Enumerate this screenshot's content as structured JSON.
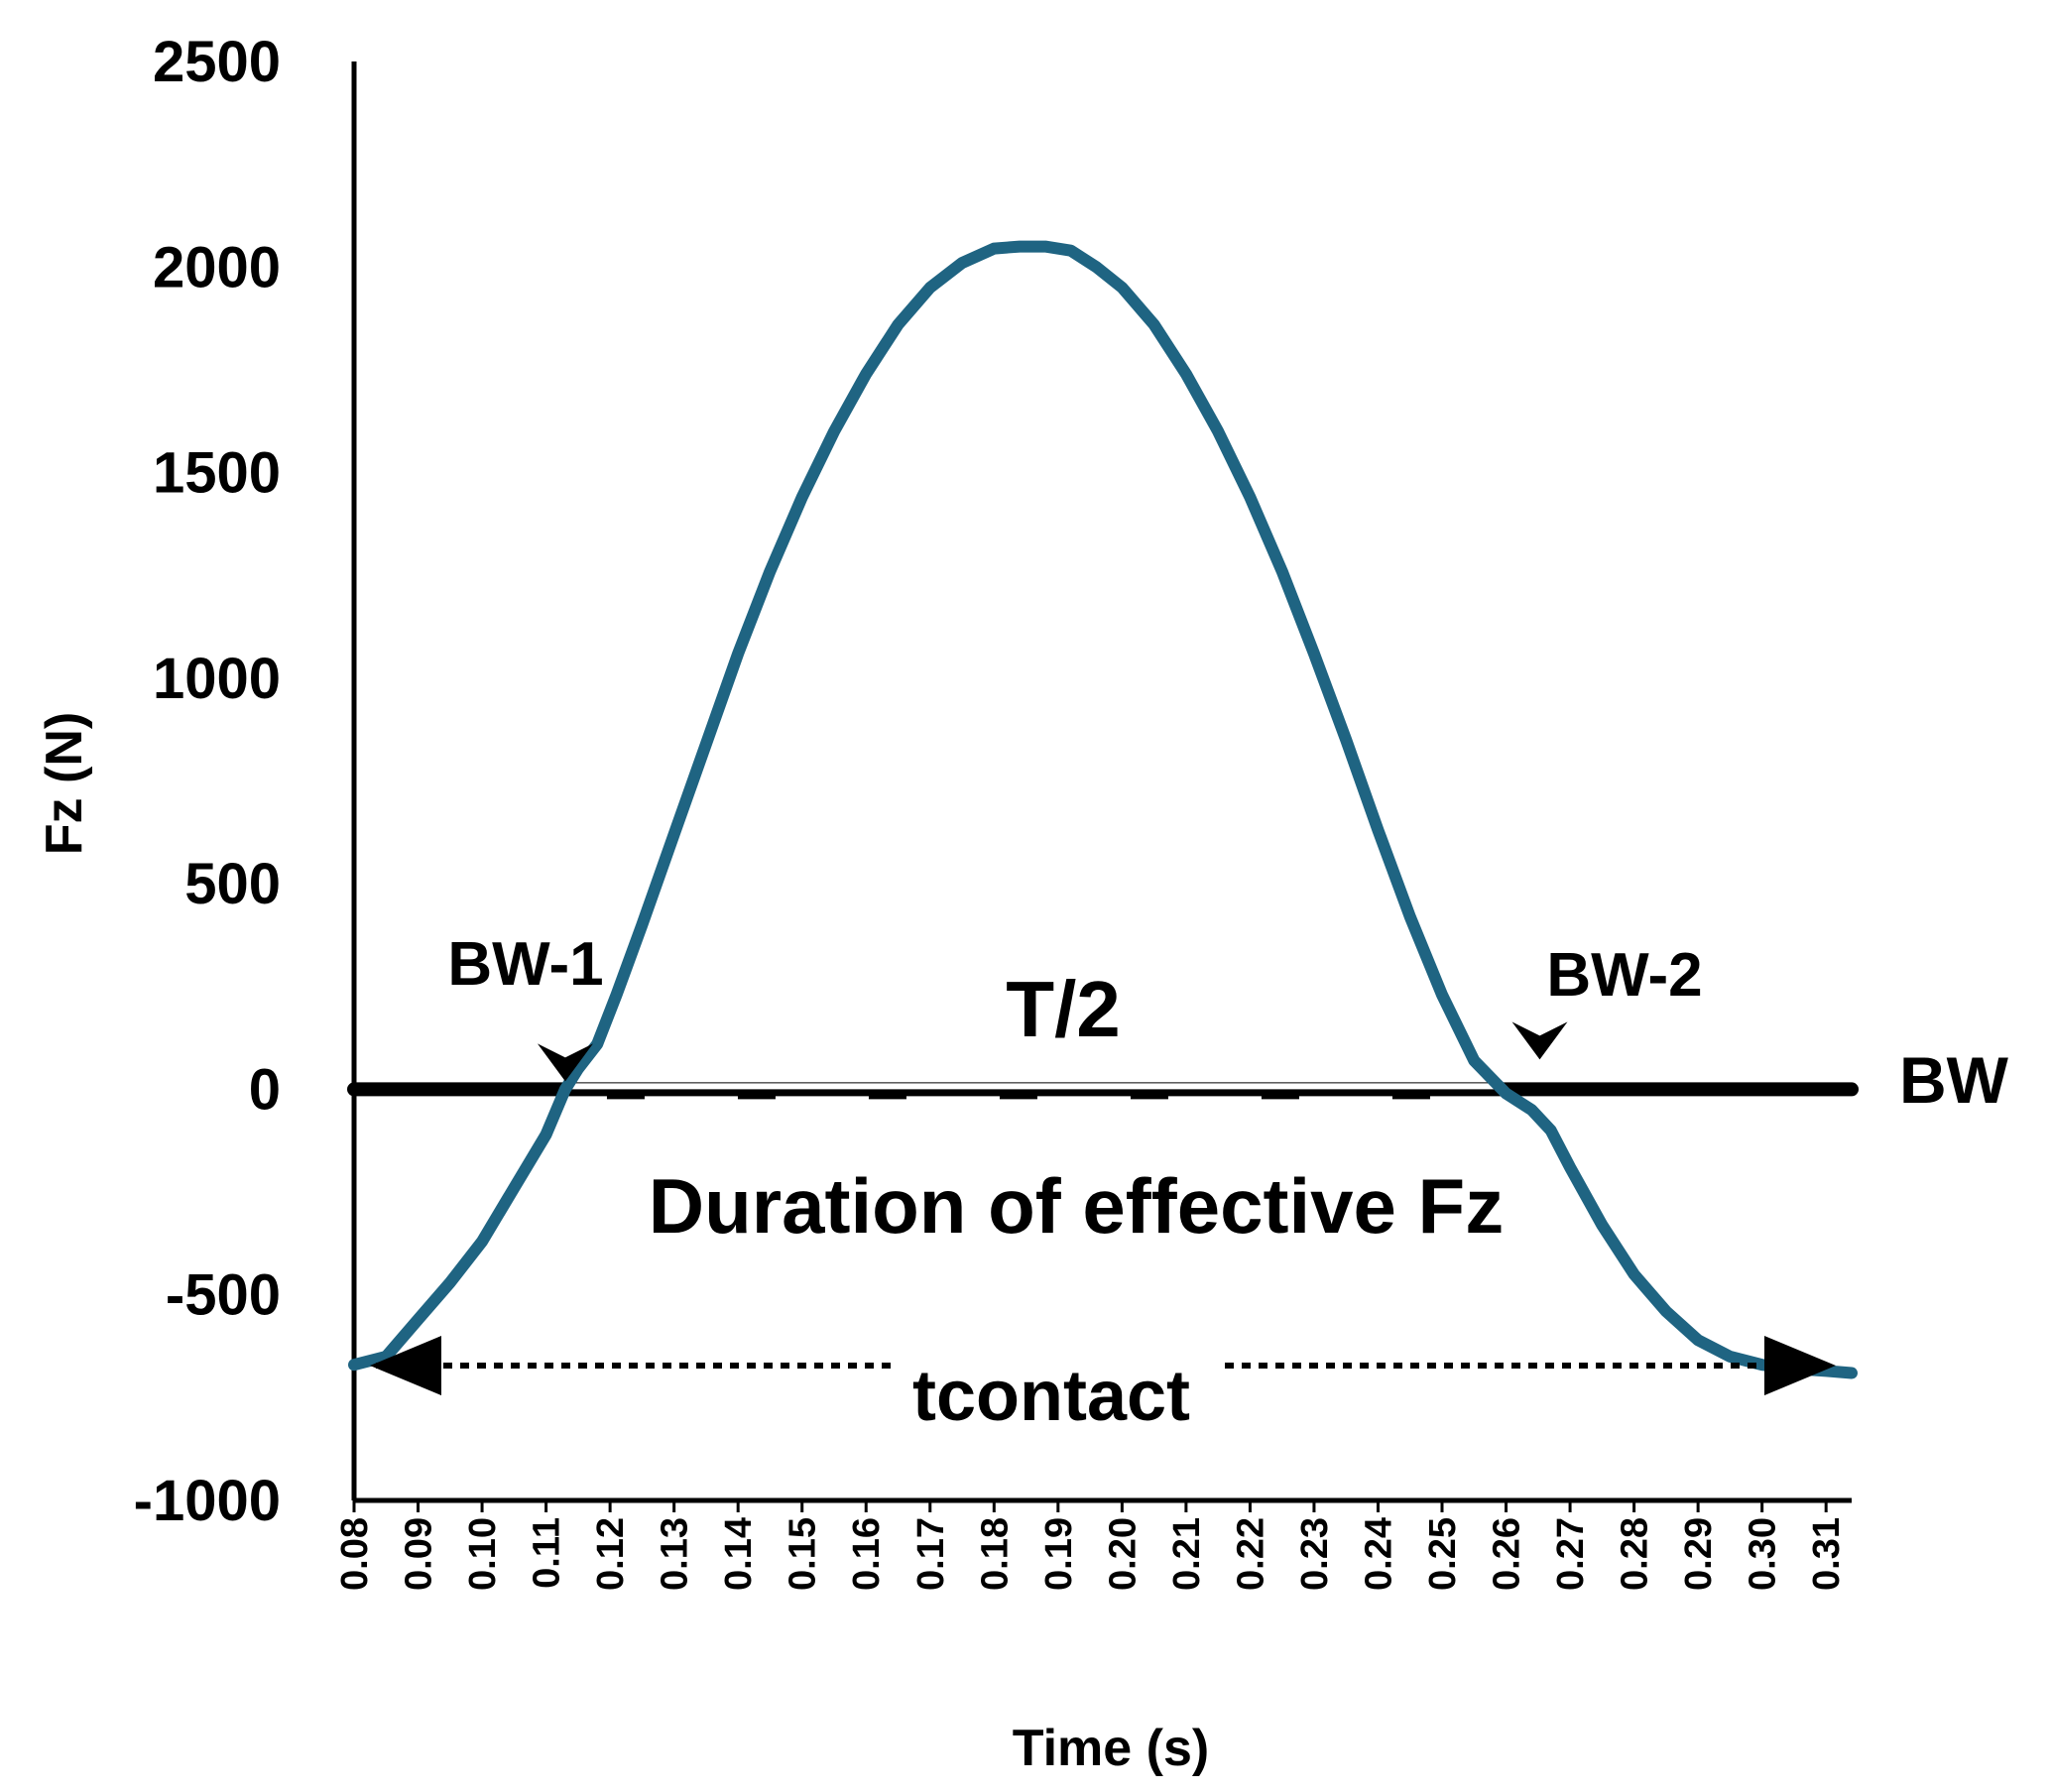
{
  "chart_data": {
    "type": "line",
    "title": "",
    "xlabel": "Time (s)",
    "ylabel": "Fz (N)",
    "xlim": [
      0.08,
      0.314
    ],
    "ylim": [
      -1000,
      2500
    ],
    "y_ticks": [
      "2500",
      "2000",
      "1500",
      "1000",
      "500",
      "0",
      "-500",
      "-1000"
    ],
    "x_ticks": [
      "0.08",
      "0.09",
      "0.10",
      "0.11",
      "0.12",
      "0.13",
      "0.14",
      "0.15",
      "0.16",
      "0.17",
      "0.18",
      "0.19",
      "0.20",
      "0.21",
      "0.22",
      "0.23",
      "0.24",
      "0.25",
      "0.26",
      "0.27",
      "0.28",
      "0.29",
      "0.30",
      "0.31"
    ],
    "series": [
      {
        "name": "Fz",
        "color": "#1f6482",
        "x": [
          0.08,
          0.085,
          0.09,
          0.095,
          0.1,
          0.105,
          0.11,
          0.113,
          0.115,
          0.118,
          0.121,
          0.125,
          0.13,
          0.135,
          0.14,
          0.145,
          0.15,
          0.155,
          0.16,
          0.165,
          0.17,
          0.175,
          0.18,
          0.184,
          0.188,
          0.192,
          0.196,
          0.2,
          0.205,
          0.21,
          0.215,
          0.22,
          0.225,
          0.23,
          0.235,
          0.24,
          0.245,
          0.25,
          0.255,
          0.26,
          0.264,
          0.267,
          0.27,
          0.275,
          0.28,
          0.285,
          0.29,
          0.295,
          0.3,
          0.305,
          0.31,
          0.314
        ],
        "y": [
          -670,
          -650,
          -560,
          -470,
          -370,
          -240,
          -110,
          0,
          50,
          110,
          230,
          400,
          620,
          840,
          1060,
          1260,
          1440,
          1600,
          1740,
          1860,
          1950,
          2010,
          2045,
          2050,
          2050,
          2040,
          2000,
          1950,
          1860,
          1740,
          1600,
          1440,
          1260,
          1060,
          850,
          630,
          420,
          230,
          70,
          -10,
          -50,
          -100,
          -190,
          -330,
          -450,
          -540,
          -610,
          -650,
          -670,
          -680,
          -685,
          -690
        ]
      }
    ],
    "reference_line": {
      "label": "BW",
      "y": 0
    },
    "annotations": {
      "bw1": "BW-1",
      "bw2": "BW-2",
      "half_period": "T/2",
      "duration": "Duration of effective Fz",
      "contact": "tcontact"
    }
  }
}
